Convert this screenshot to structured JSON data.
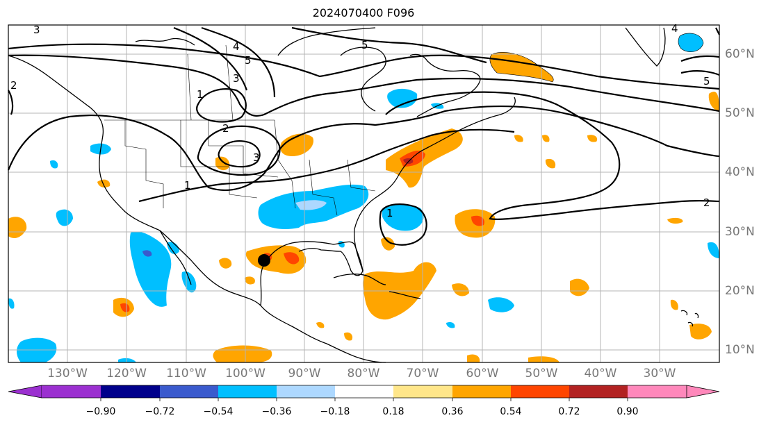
{
  "title": "2024070400 F096",
  "longitude_labels": [
    "130°W",
    "120°W",
    "110°W",
    "100°W",
    "90°W",
    "80°W",
    "70°W",
    "60°W",
    "50°W",
    "40°W",
    "30°W"
  ],
  "latitude_labels": [
    "60°N",
    "50°N",
    "40°N",
    "30°N",
    "20°N",
    "10°N"
  ],
  "contour_labels": [
    "3",
    "4",
    "5",
    "1",
    "2",
    "3",
    "1",
    "2",
    "3",
    "1",
    "5",
    "2",
    "4",
    "5"
  ],
  "colorbar": {
    "ticks": [
      "−0.90",
      "−0.72",
      "−0.54",
      "−0.36",
      "−0.18",
      "0.18",
      "0.36",
      "0.54",
      "0.72",
      "0.90"
    ],
    "colors": [
      "#9b30d0",
      "#00008b",
      "#3a5acd",
      "#00bfff",
      "#add8ff",
      "#ffffff",
      "#ffe68a",
      "#ffa500",
      "#ff4500",
      "#b22222",
      "#ff88bb"
    ]
  },
  "storm_marker": {
    "name": "storm-center",
    "lon": -96,
    "lat": 25
  }
}
